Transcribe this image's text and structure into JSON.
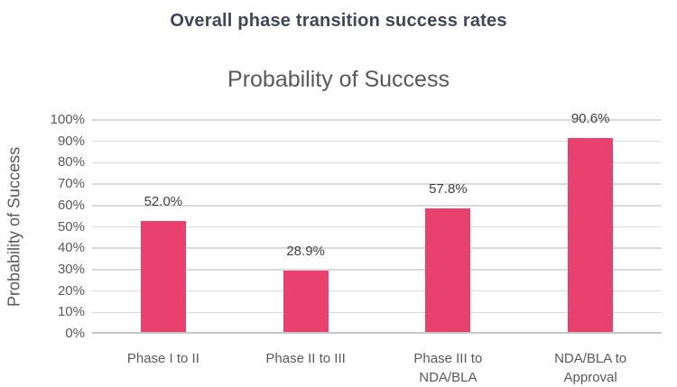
{
  "header": {
    "title": "Overall phase transition success rates"
  },
  "chart_data": {
    "type": "bar",
    "title": "Probability of Success",
    "ylabel": "Probability of Success",
    "xlabel": "",
    "categories": [
      "Phase I to II",
      "Phase II to III",
      "Phase III to\nNDA/BLA",
      "NDA/BLA to\nApproval"
    ],
    "values": [
      52.0,
      28.9,
      57.8,
      90.6
    ],
    "data_labels": [
      "52.0%",
      "28.9%",
      "57.8%",
      "90.6%"
    ],
    "ylim": [
      0,
      100
    ],
    "ytick_step": 10,
    "ytick_suffix": "%",
    "ytick_labels": [
      "0%",
      "10%",
      "20%",
      "30%",
      "40%",
      "50%",
      "60%",
      "70%",
      "80%",
      "90%",
      "100%"
    ],
    "grid": true,
    "legend": false
  },
  "colors": {
    "bar": "#E9416E",
    "gridline": "#DADADA",
    "axis_line": "#C6C6C6",
    "tick_text": "#595959",
    "category_text": "#595959",
    "data_label_text": "#3F3F3F",
    "chart_title_text": "#595959",
    "header_text": "#41455A",
    "background": "#FFFFFF"
  }
}
